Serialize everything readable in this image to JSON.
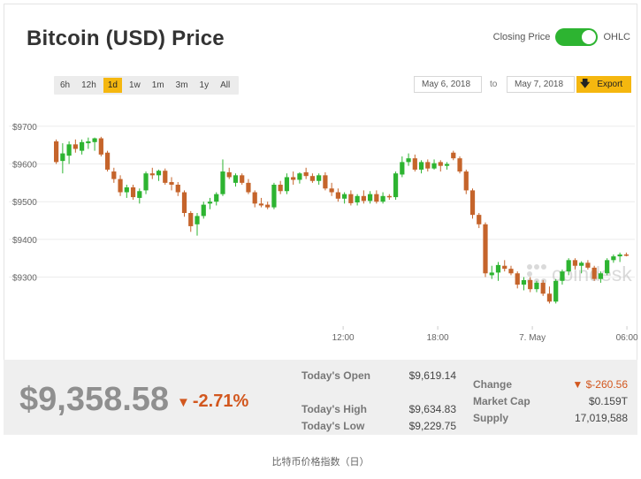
{
  "title": "Bitcoin (USD) Price",
  "toggle": {
    "left_label": "Closing Price",
    "right_label": "OHLC",
    "state": "OHLC"
  },
  "ranges": [
    "6h",
    "12h",
    "1d",
    "1w",
    "1m",
    "3m",
    "1y",
    "All"
  ],
  "active_range": "1d",
  "date_from": "May 6, 2018",
  "date_to_label": "to",
  "date_to": "May 7, 2018",
  "export_label": "Export",
  "export_icon": "download-arrow-icon",
  "watermark": "coindesk",
  "colors": {
    "up": "#2db431",
    "down": "#c5642b",
    "accent": "#f5b70f",
    "grid": "#ebebeb"
  },
  "stats": {
    "price": "$9,358.58",
    "change_pct": "-2.71%",
    "todays_open_label": "Today's Open",
    "todays_open": "$9,619.14",
    "todays_high_label": "Today's High",
    "todays_high": "$9,634.83",
    "todays_low_label": "Today's Low",
    "todays_low": "$9,229.75",
    "change_label": "Change",
    "change": "$-260.56",
    "market_cap_label": "Market Cap",
    "market_cap": "$0.159T",
    "supply_label": "Supply",
    "supply": "17,019,588"
  },
  "caption": "比特币价格指数（日）",
  "chart_data": {
    "type": "candlestick",
    "ylim": [
      9170,
      9770
    ],
    "yticks": [
      9300,
      9400,
      9500,
      9600,
      9700
    ],
    "ytick_labels": [
      "$9300",
      "$9400",
      "$9500",
      "$9600",
      "$9700"
    ],
    "xlim_hours": [
      -6.4,
      30.5
    ],
    "xticks": [
      {
        "hour": 12,
        "label": "12:00"
      },
      {
        "hour": 18,
        "label": "18:00"
      },
      {
        "hour": 24,
        "label": "7. May"
      },
      {
        "hour": 30,
        "label": "06:00"
      }
    ],
    "candles": [
      {
        "o": 9660,
        "h": 9665,
        "l": 9600,
        "c": 9605
      },
      {
        "o": 9608,
        "h": 9655,
        "l": 9575,
        "c": 9628
      },
      {
        "o": 9622,
        "h": 9660,
        "l": 9600,
        "c": 9652
      },
      {
        "o": 9652,
        "h": 9665,
        "l": 9630,
        "c": 9640
      },
      {
        "o": 9635,
        "h": 9665,
        "l": 9625,
        "c": 9658
      },
      {
        "o": 9655,
        "h": 9670,
        "l": 9640,
        "c": 9660
      },
      {
        "o": 9658,
        "h": 9670,
        "l": 9635,
        "c": 9668
      },
      {
        "o": 9668,
        "h": 9672,
        "l": 9620,
        "c": 9625
      },
      {
        "o": 9630,
        "h": 9635,
        "l": 9580,
        "c": 9585
      },
      {
        "o": 9580,
        "h": 9590,
        "l": 9550,
        "c": 9560
      },
      {
        "o": 9560,
        "h": 9570,
        "l": 9515,
        "c": 9525
      },
      {
        "o": 9525,
        "h": 9545,
        "l": 9510,
        "c": 9538
      },
      {
        "o": 9538,
        "h": 9545,
        "l": 9505,
        "c": 9512
      },
      {
        "o": 9510,
        "h": 9535,
        "l": 9495,
        "c": 9528
      },
      {
        "o": 9530,
        "h": 9580,
        "l": 9520,
        "c": 9575
      },
      {
        "o": 9575,
        "h": 9590,
        "l": 9560,
        "c": 9570
      },
      {
        "o": 9570,
        "h": 9585,
        "l": 9555,
        "c": 9582
      },
      {
        "o": 9582,
        "h": 9588,
        "l": 9545,
        "c": 9550
      },
      {
        "o": 9552,
        "h": 9565,
        "l": 9530,
        "c": 9545
      },
      {
        "o": 9545,
        "h": 9552,
        "l": 9515,
        "c": 9525
      },
      {
        "o": 9525,
        "h": 9530,
        "l": 9460,
        "c": 9470
      },
      {
        "o": 9470,
        "h": 9475,
        "l": 9420,
        "c": 9435
      },
      {
        "o": 9440,
        "h": 9470,
        "l": 9410,
        "c": 9462
      },
      {
        "o": 9462,
        "h": 9500,
        "l": 9455,
        "c": 9492
      },
      {
        "o": 9495,
        "h": 9510,
        "l": 9480,
        "c": 9500
      },
      {
        "o": 9500,
        "h": 9525,
        "l": 9490,
        "c": 9520
      },
      {
        "o": 9520,
        "h": 9612,
        "l": 9515,
        "c": 9580
      },
      {
        "o": 9578,
        "h": 9590,
        "l": 9560,
        "c": 9565
      },
      {
        "o": 9550,
        "h": 9575,
        "l": 9540,
        "c": 9570
      },
      {
        "o": 9570,
        "h": 9575,
        "l": 9545,
        "c": 9550
      },
      {
        "o": 9550,
        "h": 9560,
        "l": 9520,
        "c": 9525
      },
      {
        "o": 9525,
        "h": 9530,
        "l": 9485,
        "c": 9495
      },
      {
        "o": 9495,
        "h": 9510,
        "l": 9485,
        "c": 9490
      },
      {
        "o": 9492,
        "h": 9500,
        "l": 9480,
        "c": 9485
      },
      {
        "o": 9485,
        "h": 9550,
        "l": 9480,
        "c": 9545
      },
      {
        "o": 9545,
        "h": 9555,
        "l": 9520,
        "c": 9528
      },
      {
        "o": 9528,
        "h": 9575,
        "l": 9520,
        "c": 9565
      },
      {
        "o": 9565,
        "h": 9580,
        "l": 9545,
        "c": 9558
      },
      {
        "o": 9558,
        "h": 9578,
        "l": 9548,
        "c": 9575
      },
      {
        "o": 9578,
        "h": 9590,
        "l": 9560,
        "c": 9568
      },
      {
        "o": 9568,
        "h": 9575,
        "l": 9550,
        "c": 9555
      },
      {
        "o": 9555,
        "h": 9575,
        "l": 9545,
        "c": 9570
      },
      {
        "o": 9570,
        "h": 9578,
        "l": 9530,
        "c": 9535
      },
      {
        "o": 9535,
        "h": 9550,
        "l": 9515,
        "c": 9525
      },
      {
        "o": 9525,
        "h": 9535,
        "l": 9500,
        "c": 9508
      },
      {
        "o": 9508,
        "h": 9525,
        "l": 9495,
        "c": 9520
      },
      {
        "o": 9520,
        "h": 9530,
        "l": 9490,
        "c": 9496
      },
      {
        "o": 9498,
        "h": 9520,
        "l": 9490,
        "c": 9515
      },
      {
        "o": 9515,
        "h": 9530,
        "l": 9495,
        "c": 9502
      },
      {
        "o": 9502,
        "h": 9528,
        "l": 9495,
        "c": 9520
      },
      {
        "o": 9520,
        "h": 9530,
        "l": 9495,
        "c": 9500
      },
      {
        "o": 9500,
        "h": 9525,
        "l": 9495,
        "c": 9515
      },
      {
        "o": 9515,
        "h": 9520,
        "l": 9505,
        "c": 9512
      },
      {
        "o": 9512,
        "h": 9580,
        "l": 9505,
        "c": 9575
      },
      {
        "o": 9572,
        "h": 9620,
        "l": 9565,
        "c": 9605
      },
      {
        "o": 9605,
        "h": 9628,
        "l": 9595,
        "c": 9615
      },
      {
        "o": 9615,
        "h": 9625,
        "l": 9580,
        "c": 9585
      },
      {
        "o": 9585,
        "h": 9610,
        "l": 9575,
        "c": 9605
      },
      {
        "o": 9605,
        "h": 9612,
        "l": 9580,
        "c": 9588
      },
      {
        "o": 9588,
        "h": 9612,
        "l": 9585,
        "c": 9602
      },
      {
        "o": 9605,
        "h": 9610,
        "l": 9580,
        "c": 9595
      },
      {
        "o": 9595,
        "h": 9605,
        "l": 9585,
        "c": 9600
      },
      {
        "o": 9630,
        "h": 9635,
        "l": 9610,
        "c": 9615
      },
      {
        "o": 9615,
        "h": 9620,
        "l": 9575,
        "c": 9580
      },
      {
        "o": 9580,
        "h": 9585,
        "l": 9520,
        "c": 9530
      },
      {
        "o": 9530,
        "h": 9535,
        "l": 9455,
        "c": 9465
      },
      {
        "o": 9465,
        "h": 9470,
        "l": 9430,
        "c": 9440
      },
      {
        "o": 9440,
        "h": 9445,
        "l": 9300,
        "c": 9310
      },
      {
        "o": 9305,
        "h": 9330,
        "l": 9295,
        "c": 9312
      },
      {
        "o": 9312,
        "h": 9340,
        "l": 9290,
        "c": 9332
      },
      {
        "o": 9330,
        "h": 9345,
        "l": 9315,
        "c": 9322
      },
      {
        "o": 9322,
        "h": 9330,
        "l": 9305,
        "c": 9310
      },
      {
        "o": 9310,
        "h": 9315,
        "l": 9270,
        "c": 9280
      },
      {
        "o": 9280,
        "h": 9300,
        "l": 9265,
        "c": 9292
      },
      {
        "o": 9292,
        "h": 9300,
        "l": 9260,
        "c": 9268
      },
      {
        "o": 9268,
        "h": 9290,
        "l": 9260,
        "c": 9285
      },
      {
        "o": 9285,
        "h": 9292,
        "l": 9250,
        "c": 9256
      },
      {
        "o": 9256,
        "h": 9275,
        "l": 9230,
        "c": 9235
      },
      {
        "o": 9235,
        "h": 9295,
        "l": 9230,
        "c": 9290
      },
      {
        "o": 9290,
        "h": 9320,
        "l": 9280,
        "c": 9315
      },
      {
        "o": 9315,
        "h": 9350,
        "l": 9305,
        "c": 9345
      },
      {
        "o": 9345,
        "h": 9350,
        "l": 9320,
        "c": 9330
      },
      {
        "o": 9330,
        "h": 9342,
        "l": 9310,
        "c": 9338
      },
      {
        "o": 9338,
        "h": 9345,
        "l": 9320,
        "c": 9325
      },
      {
        "o": 9325,
        "h": 9330,
        "l": 9290,
        "c": 9295
      },
      {
        "o": 9295,
        "h": 9315,
        "l": 9285,
        "c": 9310
      },
      {
        "o": 9310,
        "h": 9350,
        "l": 9305,
        "c": 9345
      },
      {
        "o": 9345,
        "h": 9360,
        "l": 9338,
        "c": 9355
      },
      {
        "o": 9355,
        "h": 9365,
        "l": 9340,
        "c": 9360
      },
      {
        "o": 9360,
        "h": 9365,
        "l": 9355,
        "c": 9358
      }
    ]
  }
}
